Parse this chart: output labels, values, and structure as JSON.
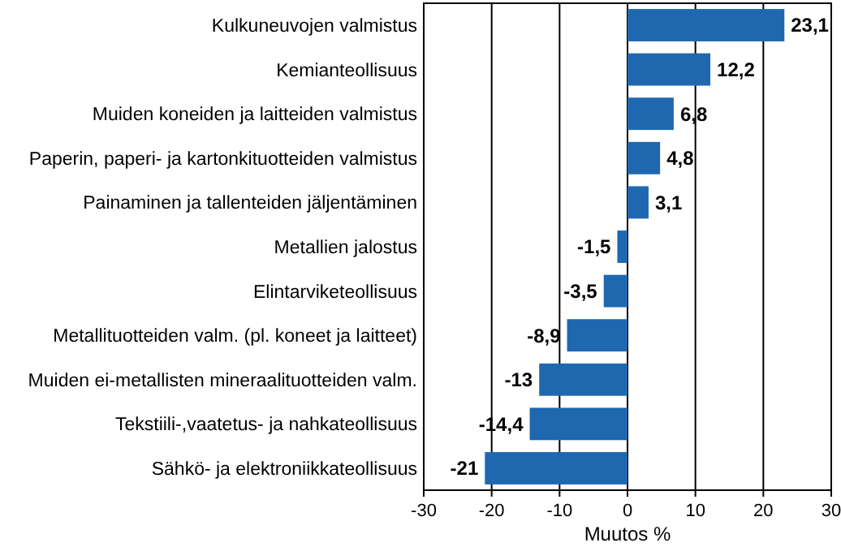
{
  "chart_data": {
    "type": "bar",
    "orientation": "horizontal",
    "xlabel": "Muutos %",
    "categories": [
      "Kulkuneuvojen valmistus",
      "Kemianteollisuus",
      "Muiden koneiden ja laitteiden valmistus",
      "Paperin, paperi- ja kartonkituotteiden valmistus",
      "Painaminen ja tallenteiden jäljentäminen",
      "Metallien jalostus",
      "Elintarviketeollisuus",
      "Metallituotteiden valm. (pl. koneet ja laitteet)",
      "Muiden ei-metallisten mineraalituotteiden valm.",
      "Tekstiili-,vaatetus- ja nahkateollisuus",
      "Sähkö- ja elektroniikkateollisuus"
    ],
    "values": [
      23.1,
      12.2,
      6.8,
      4.8,
      3.1,
      -1.5,
      -3.5,
      -8.9,
      -13,
      -14.4,
      -21
    ],
    "value_labels": [
      "23,1",
      "12,2",
      "6,8",
      "4,8",
      "3,1",
      "-1,5",
      "-3,5",
      "-8,9",
      "-13",
      "-14,4",
      "-21"
    ],
    "color": "#1f68b0",
    "xlim": [
      -30,
      30
    ],
    "xticks": [
      -30,
      -20,
      -10,
      0,
      10,
      20,
      30
    ],
    "grid": "x"
  }
}
